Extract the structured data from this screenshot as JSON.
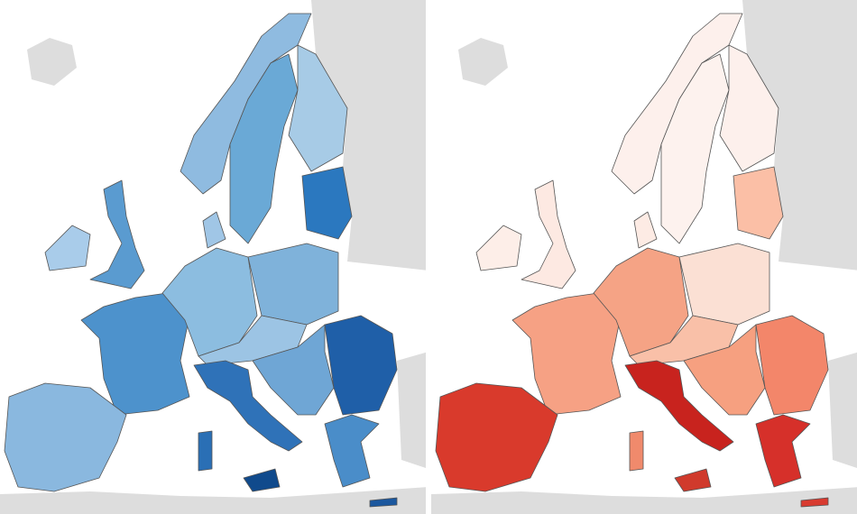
{
  "panels": [
    {
      "other_land_color": "#dddddd",
      "region_colors": [
        "#8fbbe0",
        "#6aa9d6",
        "#a7cbe6",
        "#2b78bf",
        "#5a9bd0",
        "#a9ccea",
        "#4d92cc",
        "#8ab8df",
        "#8cbde0",
        "#a0c6e6",
        "#7fb2da",
        "#9cc4e4",
        "#2f72b8",
        "#104a8c",
        "#2a6fb5",
        "#6fa6d5",
        "#1f5fa8",
        "#4a8dc9",
        "#1b579e"
      ]
    },
    {
      "other_land_color": "#dddddd",
      "region_colors": [
        "#fdf0ec",
        "#fdf2ee",
        "#fdf0ec",
        "#fbbfa6",
        "#fde9e2",
        "#fdeee8",
        "#f6a184",
        "#d93a2c",
        "#f5a385",
        "#fdebe4",
        "#fbe0d4",
        "#f9c0a8",
        "#c8231e",
        "#d03a2c",
        "#f08a6c",
        "#f6a080",
        "#f3866a",
        "#d6302a",
        "#d83b30"
      ]
    }
  ]
}
